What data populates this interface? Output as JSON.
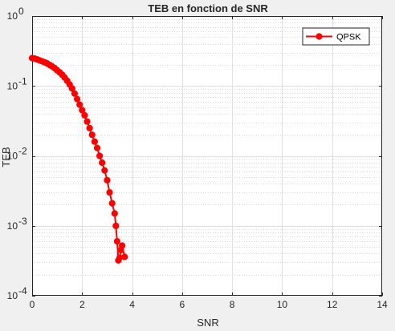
{
  "chart_data": {
    "type": "line",
    "title": "TEB en fonction de SNR",
    "xlabel": "SNR",
    "ylabel": "TEB",
    "xlim": [
      0,
      14
    ],
    "ylim": [
      0.0001,
      1
    ],
    "yscale": "log",
    "grid": true,
    "minor_grid": true,
    "legend_position": "top-right",
    "x_ticks": [
      0,
      2,
      4,
      6,
      8,
      10,
      12,
      14
    ],
    "x_tick_labels": [
      "0",
      "2",
      "4",
      "6",
      "8",
      "10",
      "12",
      "14"
    ],
    "y_ticks": [
      0.0001,
      0.001,
      0.01,
      0.1,
      1
    ],
    "y_tick_labels": [
      {
        "base": "10",
        "exp": "-4"
      },
      {
        "base": "10",
        "exp": "-3"
      },
      {
        "base": "10",
        "exp": "-2"
      },
      {
        "base": "10",
        "exp": "-1"
      },
      {
        "base": "10",
        "exp": "0"
      }
    ],
    "series": [
      {
        "name": "QPSK",
        "color": "#ff0000",
        "marker": "circle",
        "x": [
          0.0,
          0.1,
          0.2,
          0.3,
          0.4,
          0.5,
          0.6,
          0.7,
          0.8,
          0.9,
          1.0,
          1.1,
          1.2,
          1.3,
          1.4,
          1.5,
          1.6,
          1.7,
          1.8,
          1.9,
          2.0,
          2.1,
          2.2,
          2.3,
          2.4,
          2.5,
          2.6,
          2.7,
          2.8,
          2.9,
          3.0,
          3.1,
          3.2,
          3.3,
          3.35,
          3.4,
          3.45,
          3.5,
          3.55,
          3.6,
          3.7
        ],
        "y": [
          0.25,
          0.247,
          0.24,
          0.232,
          0.225,
          0.218,
          0.21,
          0.2,
          0.19,
          0.18,
          0.168,
          0.157,
          0.145,
          0.132,
          0.119,
          0.105,
          0.092,
          0.078,
          0.065,
          0.054,
          0.045,
          0.038,
          0.031,
          0.025,
          0.02,
          0.016,
          0.013,
          0.01,
          0.008,
          0.0062,
          0.0045,
          0.003,
          0.0021,
          0.0015,
          0.001,
          0.0006,
          0.00032,
          0.00035,
          0.00045,
          0.00052,
          0.00036
        ]
      }
    ]
  }
}
